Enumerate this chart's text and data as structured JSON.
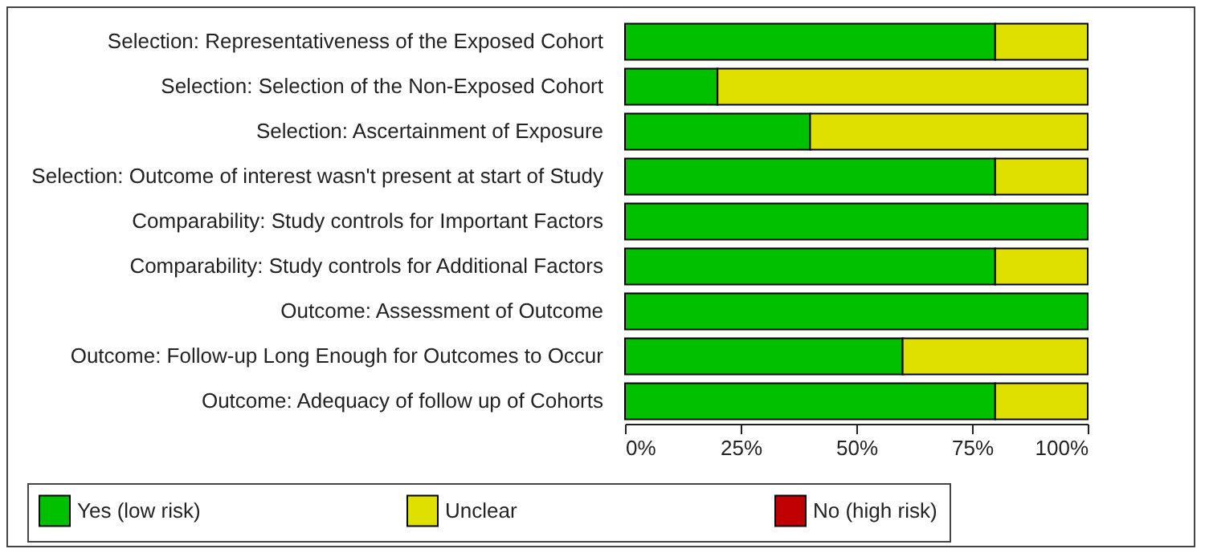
{
  "chart_data": {
    "type": "bar",
    "orientation": "horizontal",
    "stacked": true,
    "categories": [
      "Selection: Representativeness of the Exposed Cohort",
      "Selection: Selection of the Non-Exposed Cohort",
      "Selection: Ascertainment of Exposure",
      "Selection: Outcome of interest wasn't present at start of Study",
      "Comparability: Study controls for Important Factors",
      "Comparability: Study controls for Additional Factors",
      "Outcome: Assessment of Outcome",
      "Outcome: Follow-up Long Enough for Outcomes to Occur",
      "Outcome: Adequacy of follow up of Cohorts"
    ],
    "series": [
      {
        "name": "Yes (low risk)",
        "color": "#00c000",
        "values": [
          80,
          20,
          40,
          80,
          100,
          80,
          100,
          60,
          80
        ]
      },
      {
        "name": "Unclear",
        "color": "#e0e000",
        "values": [
          20,
          80,
          60,
          20,
          0,
          20,
          0,
          40,
          20
        ]
      },
      {
        "name": "No (high risk)",
        "color": "#c00000",
        "values": [
          0,
          0,
          0,
          0,
          0,
          0,
          0,
          0,
          0
        ]
      }
    ],
    "xlim": [
      0,
      100
    ],
    "xticks": [
      {
        "value": 0,
        "label": "0%"
      },
      {
        "value": 25,
        "label": "25%"
      },
      {
        "value": 50,
        "label": "50%"
      },
      {
        "value": 75,
        "label": "75%"
      },
      {
        "value": 100,
        "label": "100%"
      }
    ],
    "grid": false,
    "legend": "bottom"
  }
}
